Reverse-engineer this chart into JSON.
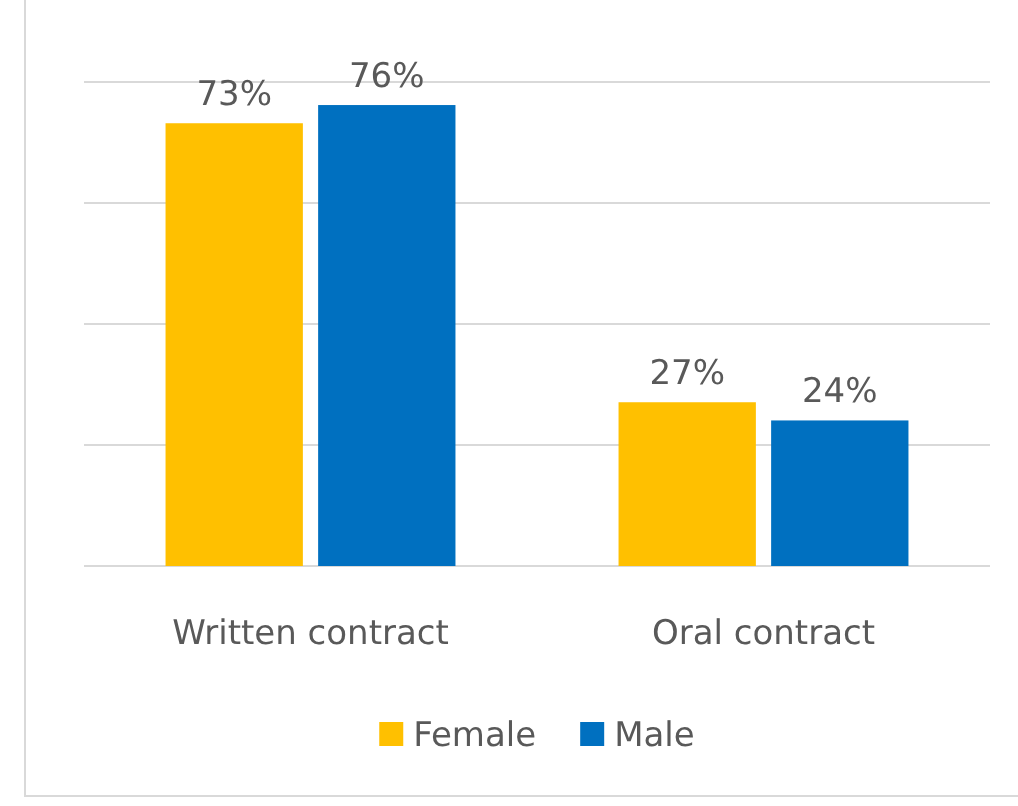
{
  "chart_data": {
    "type": "bar",
    "categories": [
      "Written contract",
      "Oral contract"
    ],
    "series": [
      {
        "name": "Female",
        "color": "#ffc000",
        "values": [
          73,
          27
        ],
        "value_labels": [
          "73%",
          "27%"
        ]
      },
      {
        "name": "Male",
        "color": "#0070c0",
        "values": [
          76,
          24
        ],
        "value_labels": [
          "76%",
          "24%"
        ]
      }
    ],
    "tick_labels": "x",
    "grid": "y",
    "legend": "bottom"
  }
}
